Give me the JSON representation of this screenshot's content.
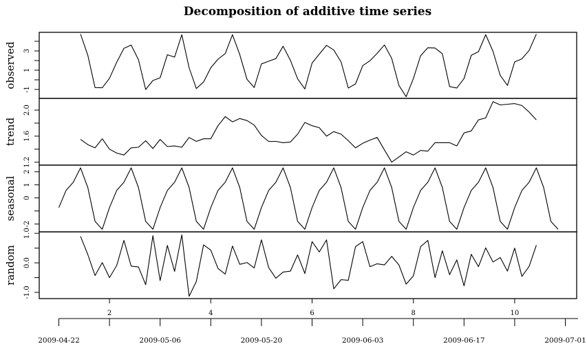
{
  "chart_data": {
    "type": "line",
    "title": "Decomposition of additive time series",
    "xlabel": "",
    "start": 1,
    "frequency": 7,
    "grid": false,
    "xlim": [
      0.63,
      11.24
    ],
    "x_ticks": [
      2,
      4,
      6,
      8,
      10
    ],
    "x_tick_labels": [
      "2",
      "4",
      "6",
      "8",
      "10"
    ],
    "date_axis": {
      "ticks": [
        1,
        2,
        3,
        4,
        5,
        6,
        7,
        8,
        9,
        10,
        11
      ],
      "labels": [
        {
          "t": 1,
          "text": "2009-04-22"
        },
        {
          "t": 3,
          "text": "2009-05-06"
        },
        {
          "t": 5,
          "text": "2009-05-20"
        },
        {
          "t": 7,
          "text": "2009-06-03"
        },
        {
          "t": 9,
          "text": "2009-06-17"
        },
        {
          "t": 11,
          "text": "2009-07-01"
        }
      ]
    },
    "panels": [
      {
        "name": "observed",
        "ylabel": "observed",
        "start_offset": 3,
        "ylim": [
          -1.93,
          4.93
        ],
        "ticks": [
          -1,
          0,
          1,
          2,
          3,
          4
        ],
        "tick_labels": [
          {
            "v": -1,
            "text": "-1"
          },
          {
            "v": 1,
            "text": "1"
          },
          {
            "v": 3,
            "text": "3"
          }
        ],
        "values": [
          4.75,
          2.55,
          -0.81,
          -0.83,
          0.16,
          1.82,
          3.27,
          3.61,
          2.09,
          -1.01,
          -0.07,
          0.21,
          2.6,
          2.36,
          4.68,
          1.25,
          -0.91,
          -0.23,
          1.25,
          2.14,
          2.72,
          4.69,
          2.62,
          0.05,
          -0.8,
          1.65,
          1.93,
          2.2,
          3.49,
          2.03,
          0.1,
          -0.95,
          1.74,
          2.67,
          3.58,
          3.09,
          1.86,
          -0.86,
          -0.43,
          1.47,
          1.98,
          2.75,
          3.62,
          2.22,
          -0.59,
          -1.76,
          0.13,
          2.5,
          3.33,
          3.3,
          2.71,
          -0.7,
          -0.85,
          0.13,
          2.54,
          2.92,
          4.69,
          2.96,
          0.46,
          -0.59,
          1.86,
          2.18,
          3.05,
          4.75
        ]
      },
      {
        "name": "trend",
        "ylabel": "trend",
        "start_offset": 3,
        "ylim": [
          1.155,
          2.18
        ],
        "ticks": [
          1.2,
          1.4,
          1.6,
          1.8,
          2.0
        ],
        "tick_labels": [
          {
            "v": 1.2,
            "text": "1.2"
          },
          {
            "v": 1.6,
            "text": "1.6"
          },
          {
            "v": 2.0,
            "text": "2.0"
          }
        ],
        "values": [
          1.55,
          1.47,
          1.42,
          1.56,
          1.4,
          1.34,
          1.31,
          1.42,
          1.43,
          1.53,
          1.41,
          1.55,
          1.44,
          1.45,
          1.43,
          1.58,
          1.52,
          1.56,
          1.56,
          1.76,
          1.9,
          1.82,
          1.87,
          1.84,
          1.77,
          1.61,
          1.52,
          1.52,
          1.5,
          1.51,
          1.63,
          1.81,
          1.76,
          1.73,
          1.6,
          1.67,
          1.63,
          1.53,
          1.42,
          1.49,
          1.54,
          1.58,
          1.39,
          1.2,
          1.28,
          1.36,
          1.31,
          1.38,
          1.37,
          1.5,
          1.5,
          1.5,
          1.45,
          1.65,
          1.68,
          1.85,
          1.88,
          2.13,
          2.08,
          2.09,
          2.1,
          2.07,
          1.97,
          1.85
        ]
      },
      {
        "name": "seasonal",
        "ylabel": "seasonal",
        "start_offset": 0,
        "ylim": [
          -2.6,
          2.51
        ],
        "ticks": [
          -2,
          -1,
          0,
          1,
          2
        ],
        "tick_labels": [
          {
            "v": -2,
            "text": "-2"
          },
          {
            "v": 0,
            "text": "0"
          },
          {
            "v": 1,
            "text": "1"
          },
          {
            "v": 2,
            "text": "2"
          }
        ],
        "values": [
          -0.74,
          0.57,
          1.2,
          2.3,
          0.8,
          -1.8,
          -2.4,
          -0.74,
          0.57,
          1.2,
          2.3,
          0.8,
          -1.8,
          -2.4,
          -0.74,
          0.57,
          1.2,
          2.3,
          0.8,
          -1.8,
          -2.4,
          -0.74,
          0.57,
          1.2,
          2.3,
          0.8,
          -1.8,
          -2.4,
          -0.74,
          0.57,
          1.2,
          2.3,
          0.8,
          -1.8,
          -2.4,
          -0.74,
          0.57,
          1.2,
          2.3,
          0.8,
          -1.8,
          -2.4,
          -0.74,
          0.57,
          1.2,
          2.3,
          0.8,
          -1.8,
          -2.4,
          -0.74,
          0.57,
          1.2,
          2.3,
          0.8,
          -1.8,
          -2.4,
          -0.74,
          0.57,
          1.2,
          2.3,
          0.8,
          -1.8,
          -2.4,
          -0.74,
          0.57,
          1.2,
          2.3,
          0.8,
          -1.8,
          -2.4
        ]
      },
      {
        "name": "random",
        "ylabel": "random",
        "start_offset": 3,
        "ylim": [
          -1.21,
          1.05
        ],
        "ticks": [
          -1.0,
          -0.5,
          0.0,
          0.5,
          1.0
        ],
        "tick_labels": [
          {
            "v": -1.0,
            "text": "-1.0"
          },
          {
            "v": 0.0,
            "text": "0.0"
          },
          {
            "v": 1.0,
            "text": "1.0"
          }
        ],
        "values": [
          0.9,
          0.28,
          -0.43,
          0.01,
          -0.5,
          -0.09,
          0.76,
          -0.11,
          -0.14,
          -0.74,
          0.92,
          -0.6,
          0.59,
          -0.29,
          0.95,
          -1.13,
          -0.63,
          0.61,
          0.43,
          -0.19,
          -0.38,
          0.57,
          -0.05,
          0.01,
          -0.17,
          0.78,
          -0.16,
          -0.52,
          -0.31,
          -0.28,
          0.27,
          -0.36,
          0.72,
          0.37,
          0.78,
          -0.88,
          -0.57,
          -0.59,
          0.55,
          0.72,
          -0.13,
          -0.03,
          -0.07,
          0.22,
          -0.07,
          -0.72,
          -0.44,
          0.55,
          0.76,
          -0.5,
          0.41,
          -0.4,
          0.1,
          -0.78,
          0.29,
          -0.13,
          0.51,
          0.03,
          0.18,
          -0.28,
          0.5,
          -0.46,
          -0.12,
          0.6
        ]
      }
    ]
  }
}
